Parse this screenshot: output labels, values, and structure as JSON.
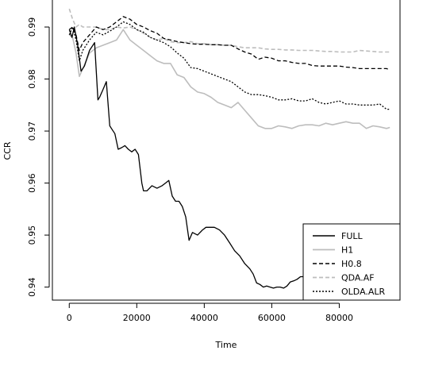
{
  "chart_data": {
    "type": "line",
    "title": "",
    "xlabel": "Time",
    "ylabel": "CCR",
    "xlim": [
      -5000,
      98000
    ],
    "ylim": [
      0.9375,
      0.9955
    ],
    "xticks": [
      0,
      20000,
      40000,
      60000,
      80000
    ],
    "yticks": [
      0.94,
      0.95,
      0.96,
      0.97,
      0.98,
      0.99
    ],
    "xtick_labels": [
      "0",
      "20000",
      "40000",
      "60000",
      "80000"
    ],
    "ytick_labels": [
      "0.94",
      "0.95",
      "0.96",
      "0.97",
      "0.98",
      "0.99"
    ],
    "grid": false,
    "legend_position": "bottom-right",
    "series": [
      {
        "name": "FULL",
        "color": "#000000",
        "dash": "solid",
        "x": [
          0,
          800,
          1500,
          2500,
          3500,
          4500,
          6000,
          7500,
          8500,
          9000,
          10000,
          11000,
          12000,
          12500,
          13500,
          14500,
          15500,
          16500,
          17500,
          18500,
          19500,
          20500,
          21500,
          22000,
          23000,
          24500,
          26000,
          27500,
          28500,
          29500,
          30500,
          31500,
          32500,
          33500,
          34500,
          35500,
          36500,
          38000,
          39500,
          40500,
          41500,
          43000,
          44500,
          46000,
          47500,
          49000,
          50500,
          52000,
          53500,
          54500,
          55500,
          56500,
          57500,
          58500,
          59500,
          60500,
          61500,
          62500,
          63500,
          64500,
          65500,
          66500,
          67500,
          68500,
          69500,
          70500,
          71000
        ],
        "y": [
          0.9895,
          0.988,
          0.99,
          0.9865,
          0.9815,
          0.9825,
          0.9855,
          0.987,
          0.976,
          0.9765,
          0.978,
          0.9795,
          0.971,
          0.9705,
          0.9695,
          0.9665,
          0.9668,
          0.9672,
          0.9665,
          0.966,
          0.9665,
          0.9655,
          0.96,
          0.9585,
          0.9585,
          0.9595,
          0.959,
          0.9595,
          0.96,
          0.9605,
          0.9575,
          0.9565,
          0.9565,
          0.9555,
          0.9535,
          0.949,
          0.9505,
          0.95,
          0.951,
          0.9515,
          0.9515,
          0.9515,
          0.951,
          0.95,
          0.9485,
          0.947,
          0.946,
          0.9445,
          0.9435,
          0.9425,
          0.9408,
          0.9405,
          0.94,
          0.9402,
          0.94,
          0.9398,
          0.94,
          0.94,
          0.9398,
          0.9402,
          0.941,
          0.9412,
          0.9415,
          0.942,
          0.942,
          0.9422,
          0.9425
        ]
      },
      {
        "name": "H1",
        "color": "#bdbdbd",
        "dash": "solid",
        "x": [
          0,
          1000,
          2000,
          3000,
          4000,
          6000,
          8000,
          10000,
          12000,
          14000,
          16000,
          18000,
          20000,
          22000,
          24000,
          26000,
          28000,
          30000,
          32000,
          34000,
          36000,
          38000,
          40000,
          42000,
          44000,
          46000,
          48000,
          50000,
          52000,
          54000,
          56000,
          58000,
          60000,
          62000,
          64000,
          66000,
          68000,
          70000,
          72000,
          74000,
          76000,
          78000,
          80000,
          82000,
          84000,
          86000,
          88000,
          90000,
          92000,
          94000,
          95000
        ],
        "y": [
          0.9885,
          0.988,
          0.985,
          0.9805,
          0.982,
          0.985,
          0.986,
          0.9865,
          0.987,
          0.9875,
          0.9895,
          0.9875,
          0.9865,
          0.9855,
          0.9845,
          0.9835,
          0.983,
          0.983,
          0.9808,
          0.9803,
          0.9785,
          0.9775,
          0.9772,
          0.9765,
          0.9755,
          0.975,
          0.9745,
          0.9755,
          0.974,
          0.9725,
          0.971,
          0.9705,
          0.9705,
          0.971,
          0.9708,
          0.9705,
          0.971,
          0.9712,
          0.9712,
          0.971,
          0.9715,
          0.9712,
          0.9715,
          0.9718,
          0.9715,
          0.9715,
          0.9705,
          0.971,
          0.9708,
          0.9705,
          0.9707
        ]
      },
      {
        "name": "H0.8",
        "color": "#000000",
        "dash": "dashed",
        "x": [
          0,
          1000,
          2000,
          3000,
          4000,
          6000,
          8000,
          10000,
          12000,
          14000,
          16000,
          18000,
          20000,
          22000,
          24000,
          26000,
          28000,
          30000,
          32000,
          34000,
          36000,
          38000,
          40000,
          42000,
          44000,
          46000,
          48000,
          50000,
          52000,
          54000,
          56000,
          58000,
          60000,
          62000,
          64000,
          66000,
          68000,
          70000,
          72000,
          74000,
          76000,
          78000,
          80000,
          82000,
          84000,
          86000,
          88000,
          90000,
          92000,
          94000,
          95000
        ],
        "y": [
          0.9895,
          0.99,
          0.9885,
          0.9855,
          0.987,
          0.9885,
          0.99,
          0.9895,
          0.99,
          0.991,
          0.992,
          0.9915,
          0.9905,
          0.99,
          0.9893,
          0.9888,
          0.9878,
          0.9875,
          0.9872,
          0.987,
          0.9868,
          0.9867,
          0.9867,
          0.9866,
          0.9866,
          0.9865,
          0.9865,
          0.9858,
          0.9852,
          0.9848,
          0.9838,
          0.9842,
          0.984,
          0.9835,
          0.9835,
          0.9832,
          0.983,
          0.983,
          0.9826,
          0.9825,
          0.9825,
          0.9825,
          0.9825,
          0.9823,
          0.9822,
          0.982,
          0.982,
          0.982,
          0.982,
          0.982,
          0.9818
        ]
      },
      {
        "name": "QDA.AF",
        "color": "#bdbdbd",
        "dash": "dashed",
        "x": [
          0,
          1000,
          2000,
          3000,
          4000,
          6000,
          8000,
          10000,
          12000,
          14000,
          16000,
          18000,
          20000,
          22000,
          24000,
          26000,
          28000,
          30000,
          32000,
          34000,
          36000,
          38000,
          40000,
          42000,
          44000,
          46000,
          48000,
          50000,
          52000,
          54000,
          56000,
          58000,
          60000,
          62000,
          64000,
          66000,
          68000,
          70000,
          72000,
          74000,
          76000,
          78000,
          80000,
          82000,
          84000,
          86000,
          88000,
          90000,
          92000,
          94000,
          95000
        ],
        "y": [
          0.9935,
          0.9915,
          0.99,
          0.9905,
          0.99,
          0.99,
          0.99,
          0.9895,
          0.9895,
          0.99,
          0.9898,
          0.99,
          0.9895,
          0.9888,
          0.988,
          0.9875,
          0.9878,
          0.9872,
          0.987,
          0.987,
          0.9872,
          0.9868,
          0.9868,
          0.9866,
          0.9866,
          0.9865,
          0.9865,
          0.9862,
          0.986,
          0.986,
          0.986,
          0.9858,
          0.9857,
          0.9857,
          0.9856,
          0.9856,
          0.9855,
          0.9855,
          0.9855,
          0.9854,
          0.9853,
          0.9853,
          0.9852,
          0.9852,
          0.9852,
          0.9855,
          0.9854,
          0.9853,
          0.9852,
          0.9852,
          0.9852
        ]
      },
      {
        "name": "OLDA.ALR",
        "color": "#000000",
        "dash": "dotted",
        "x": [
          0,
          1000,
          2000,
          3000,
          4000,
          6000,
          8000,
          10000,
          12000,
          14000,
          16000,
          18000,
          20000,
          22000,
          24000,
          26000,
          28000,
          30000,
          32000,
          34000,
          36000,
          38000,
          40000,
          42000,
          44000,
          46000,
          48000,
          50000,
          52000,
          54000,
          56000,
          58000,
          60000,
          62000,
          64000,
          66000,
          68000,
          70000,
          72000,
          74000,
          76000,
          78000,
          80000,
          82000,
          84000,
          86000,
          88000,
          90000,
          92000,
          94000,
          95000
        ],
        "y": [
          0.9885,
          0.99,
          0.9875,
          0.9835,
          0.9855,
          0.9875,
          0.989,
          0.9885,
          0.9892,
          0.99,
          0.991,
          0.9905,
          0.9895,
          0.989,
          0.988,
          0.9875,
          0.987,
          0.9862,
          0.985,
          0.984,
          0.9822,
          0.982,
          0.9815,
          0.981,
          0.9805,
          0.98,
          0.9795,
          0.9785,
          0.9775,
          0.977,
          0.977,
          0.9768,
          0.9765,
          0.976,
          0.976,
          0.9762,
          0.9758,
          0.9758,
          0.9762,
          0.9755,
          0.9752,
          0.9755,
          0.9758,
          0.9752,
          0.9752,
          0.975,
          0.975,
          0.975,
          0.9752,
          0.9742,
          0.9742
        ]
      }
    ]
  }
}
